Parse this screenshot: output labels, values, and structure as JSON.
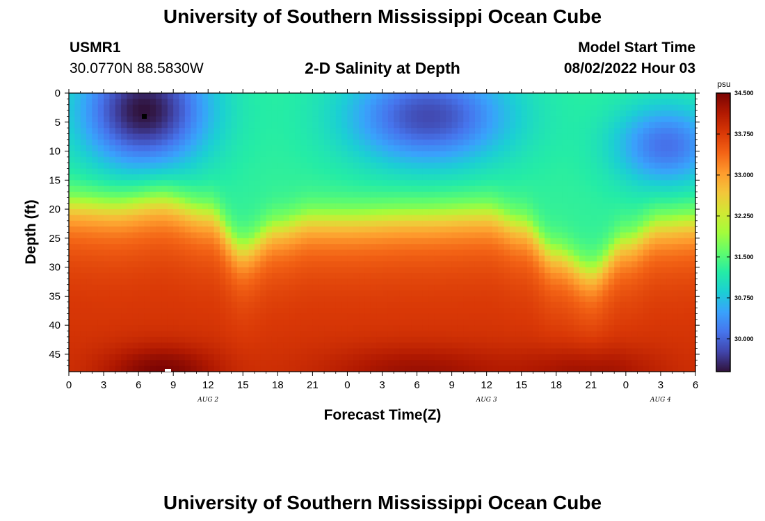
{
  "header": {
    "title": "University of Southern Mississippi Ocean Cube",
    "station_id": "USMR1",
    "coords": "30.0770N  88.5830W",
    "subtitle": "2-D Salinity at Depth",
    "model_start_label": "Model Start Time",
    "model_start_value": "08/02/2022 Hour 03"
  },
  "footer": {
    "title": "University of Southern Mississippi Ocean Cube"
  },
  "chart_data": {
    "type": "heatmap",
    "title": "2-D Salinity at Depth",
    "xlabel": "Forecast Time(Z)",
    "ylabel": "Depth (ft)",
    "x_tick_labels": [
      "0",
      "3",
      "6",
      "9",
      "12",
      "15",
      "18",
      "21",
      "0",
      "3",
      "6",
      "9",
      "12",
      "15",
      "18",
      "21",
      "0",
      "3",
      "6"
    ],
    "x_range_hours": [
      0,
      54
    ],
    "y_tick_labels": [
      "0",
      "5",
      "10",
      "15",
      "20",
      "25",
      "30",
      "35",
      "40",
      "45"
    ],
    "y_range_ft": [
      0,
      48
    ],
    "date_labels": [
      {
        "text": "AUG 2",
        "hour": 12
      },
      {
        "text": "AUG 3",
        "hour": 36
      },
      {
        "text": "AUG 4",
        "hour": 51
      }
    ],
    "colorbar": {
      "unit": "psu",
      "min": 29.4,
      "max": 34.5,
      "tick_values": [
        34.5,
        33.75,
        33.0,
        32.25,
        31.5,
        30.75,
        30.0
      ],
      "tick_labels": [
        "34.500",
        "33.750",
        "33.000",
        "32.250",
        "31.500",
        "30.750",
        "30.000"
      ],
      "colors": [
        "#30123b",
        "#4145ab",
        "#4675ed",
        "#39a2fc",
        "#1bcfd4",
        "#24eca6",
        "#61fc6c",
        "#a4fc3b",
        "#d1e834",
        "#f3c63a",
        "#fe9b2d",
        "#f36315",
        "#d93806",
        "#b11901",
        "#7a0403"
      ]
    },
    "salinity_model": {
      "surface_lows": [
        {
          "hour": 6.5,
          "depth_ft": 3,
          "value": 29.4,
          "spread_h": 5.5,
          "spread_ft": 7
        },
        {
          "hour": 31,
          "depth_ft": 4,
          "value": 29.8,
          "spread_h": 7,
          "spread_ft": 6
        },
        {
          "hour": 51.5,
          "depth_ft": 9,
          "value": 30.1,
          "spread_h": 4.5,
          "spread_ft": 5
        }
      ],
      "surface_background": 31.3,
      "deep_value": 33.85,
      "halocline_depth_ft": [
        {
          "hour": 0,
          "depth": 17.5
        },
        {
          "hour": 4,
          "depth": 18
        },
        {
          "hour": 8,
          "depth": 17
        },
        {
          "hour": 12,
          "depth": 19
        },
        {
          "hour": 15,
          "depth": 25
        },
        {
          "hour": 18,
          "depth": 21.5
        },
        {
          "hour": 21,
          "depth": 20
        },
        {
          "hour": 24,
          "depth": 20
        },
        {
          "hour": 30,
          "depth": 19.5
        },
        {
          "hour": 36,
          "depth": 19
        },
        {
          "hour": 39,
          "depth": 21
        },
        {
          "hour": 42,
          "depth": 26
        },
        {
          "hour": 45,
          "depth": 29
        },
        {
          "hour": 48,
          "depth": 24
        },
        {
          "hour": 51,
          "depth": 21
        },
        {
          "hour": 54,
          "depth": 20.5
        }
      ],
      "bottom_highs": [
        {
          "hour": 8,
          "value": 34.5,
          "spread_h": 5
        },
        {
          "hour": 30,
          "value": 34.3,
          "spread_h": 8
        },
        {
          "hour": 45,
          "value": 34.3,
          "spread_h": 6
        }
      ]
    }
  }
}
